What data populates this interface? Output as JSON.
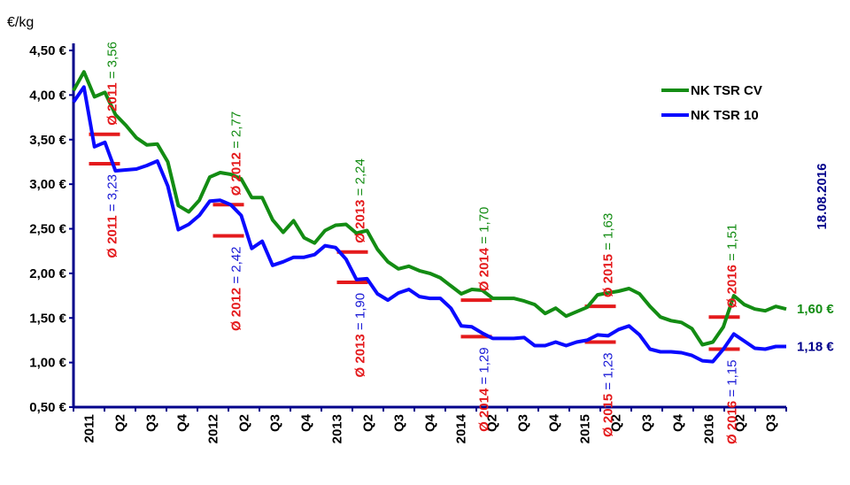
{
  "chart_data": {
    "type": "line",
    "unit_label": "€/kg",
    "date_label": "18.08.2016",
    "y_ticks": [
      "0,50 €",
      "1,00 €",
      "1,50 €",
      "2,00 €",
      "2,50 €",
      "3,00 €",
      "3,50 €",
      "4,00 €",
      "4,50 €"
    ],
    "ylim": [
      0.5,
      4.5
    ],
    "x_ticks": [
      "2011",
      "Q2",
      "Q3",
      "Q4",
      "2012",
      "Q2",
      "Q3",
      "Q4",
      "2013",
      "Q2",
      "Q3",
      "Q4",
      "2014",
      "Q2",
      "Q3",
      "Q4",
      "2015",
      "Q2",
      "Q3",
      "Q4",
      "2016",
      "Q2",
      "Q3"
    ],
    "x_tick_years": [
      "2011",
      "2012",
      "2013",
      "2014",
      "2015",
      "2016"
    ],
    "legend_position": "top-right",
    "series": [
      {
        "name": "NK TSR CV",
        "color": "#138c13",
        "end_label": "1,60 €",
        "values": [
          4.05,
          4.26,
          3.98,
          4.03,
          3.78,
          3.66,
          3.52,
          3.44,
          3.45,
          3.25,
          2.76,
          2.69,
          2.82,
          3.08,
          3.13,
          3.11,
          3.06,
          2.85,
          2.85,
          2.6,
          2.46,
          2.59,
          2.4,
          2.34,
          2.48,
          2.54,
          2.55,
          2.45,
          2.48,
          2.27,
          2.13,
          2.05,
          2.08,
          2.03,
          2.0,
          1.95,
          1.86,
          1.77,
          1.82,
          1.81,
          1.72,
          1.72,
          1.72,
          1.69,
          1.65,
          1.55,
          1.61,
          1.52,
          1.57,
          1.62,
          1.76,
          1.78,
          1.8,
          1.83,
          1.77,
          1.63,
          1.51,
          1.47,
          1.45,
          1.38,
          1.2,
          1.23,
          1.4,
          1.75,
          1.65,
          1.6,
          1.58,
          1.63,
          1.6
        ]
      },
      {
        "name": "NK TSR 10",
        "color": "#0a0aff",
        "end_label": "1,18 €",
        "values": [
          3.92,
          4.09,
          3.42,
          3.47,
          3.15,
          3.16,
          3.17,
          3.21,
          3.26,
          2.98,
          2.49,
          2.55,
          2.65,
          2.81,
          2.82,
          2.77,
          2.65,
          2.28,
          2.36,
          2.09,
          2.13,
          2.18,
          2.18,
          2.21,
          2.31,
          2.29,
          2.16,
          1.93,
          1.94,
          1.77,
          1.7,
          1.78,
          1.82,
          1.74,
          1.72,
          1.72,
          1.61,
          1.41,
          1.4,
          1.33,
          1.27,
          1.27,
          1.27,
          1.28,
          1.19,
          1.19,
          1.23,
          1.19,
          1.23,
          1.25,
          1.31,
          1.3,
          1.37,
          1.41,
          1.31,
          1.15,
          1.12,
          1.12,
          1.11,
          1.08,
          1.02,
          1.01,
          1.15,
          1.32,
          1.24,
          1.16,
          1.15,
          1.18,
          1.18
        ]
      }
    ],
    "averages": [
      {
        "series": "NK TSR CV",
        "label": "Ø 2011",
        "value_text": "= 3,56",
        "value": 3.56,
        "x_from": 0.5,
        "x_to": 1.5
      },
      {
        "series": "NK TSR 10",
        "label": "Ø 2011",
        "value_text": "= 3,23",
        "value": 3.23,
        "x_from": 0.5,
        "x_to": 1.5
      },
      {
        "series": "NK TSR CV",
        "label": "Ø 2012",
        "value_text": "= 2,77",
        "value": 2.77,
        "x_from": 4.5,
        "x_to": 5.5
      },
      {
        "series": "NK TSR 10",
        "label": "Ø 2012",
        "value_text": "= 2,42",
        "value": 2.42,
        "x_from": 4.5,
        "x_to": 5.5
      },
      {
        "series": "NK TSR CV",
        "label": "Ø 2013",
        "value_text": "= 2,24",
        "value": 2.24,
        "x_from": 8.5,
        "x_to": 9.5
      },
      {
        "series": "NK TSR 10",
        "label": "Ø 2013",
        "value_text": "= 1,90",
        "value": 1.9,
        "x_from": 8.5,
        "x_to": 9.5
      },
      {
        "series": "NK TSR CV",
        "label": "Ø 2014",
        "value_text": "= 1,70",
        "value": 1.7,
        "x_from": 12.5,
        "x_to": 13.5
      },
      {
        "series": "NK TSR 10",
        "label": "Ø 2014",
        "value_text": "= 1,29",
        "value": 1.29,
        "x_from": 12.5,
        "x_to": 13.5
      },
      {
        "series": "NK TSR CV",
        "label": "Ø 2015",
        "value_text": "= 1,63",
        "value": 1.63,
        "x_from": 16.5,
        "x_to": 17.5
      },
      {
        "series": "NK TSR 10",
        "label": "Ø 2015",
        "value_text": "= 1,23",
        "value": 1.23,
        "x_from": 16.5,
        "x_to": 17.5
      },
      {
        "series": "NK TSR CV",
        "label": "Ø 2016",
        "value_text": "= 1,51",
        "value": 1.51,
        "x_from": 20.5,
        "x_to": 21.5
      },
      {
        "series": "NK TSR 10",
        "label": "Ø 2016",
        "value_text": "= 1,15",
        "value": 1.15,
        "x_from": 20.5,
        "x_to": 21.5
      }
    ]
  }
}
